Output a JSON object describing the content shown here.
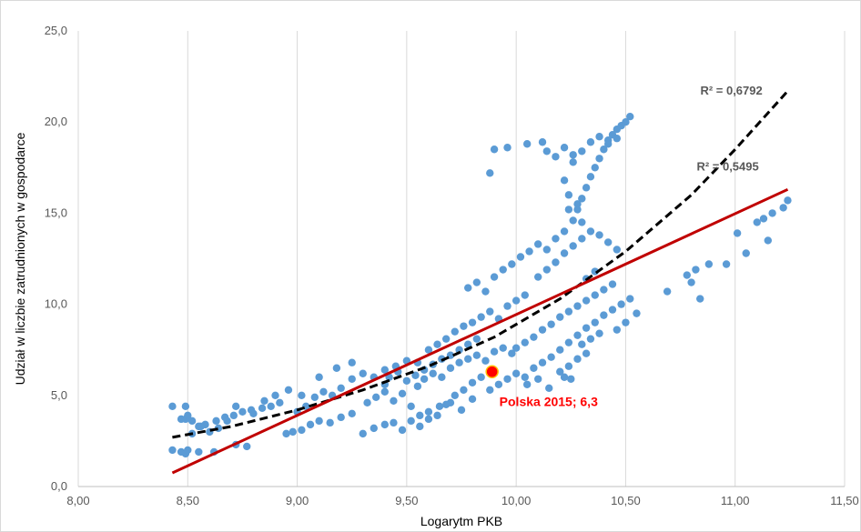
{
  "chart_data": {
    "type": "scatter",
    "xlabel": "Logarytm PKB",
    "ylabel": "Udział w liczbie zatrudnionych w gospodarce",
    "xlim": [
      8.0,
      11.5
    ],
    "ylim": [
      0,
      25
    ],
    "x_ticks": [
      "8,00",
      "8,50",
      "9,00",
      "9,50",
      "10,00",
      "10,50",
      "11,00",
      "11,50"
    ],
    "y_ticks": [
      "0,0",
      "5,0",
      "10,0",
      "15,0",
      "20,0",
      "25,0"
    ],
    "grid": "vertical",
    "point_color": "#5b9bd5",
    "points": [
      [
        8.43,
        4.4
      ],
      [
        8.47,
        3.7
      ],
      [
        8.49,
        3.7
      ],
      [
        8.49,
        4.4
      ],
      [
        8.5,
        3.9
      ],
      [
        8.52,
        3.6
      ],
      [
        8.55,
        3.3
      ],
      [
        8.58,
        3.4
      ],
      [
        8.63,
        3.6
      ],
      [
        8.67,
        3.8
      ],
      [
        8.71,
        3.9
      ],
      [
        8.75,
        4.1
      ],
      [
        8.79,
        4.2
      ],
      [
        8.84,
        4.3
      ],
      [
        8.88,
        4.4
      ],
      [
        8.92,
        4.6
      ],
      [
        8.43,
        2.0
      ],
      [
        8.47,
        1.9
      ],
      [
        8.49,
        1.8
      ],
      [
        8.5,
        2.0
      ],
      [
        8.55,
        1.9
      ],
      [
        8.62,
        1.9
      ],
      [
        8.72,
        2.3
      ],
      [
        8.77,
        2.2
      ],
      [
        8.52,
        2.9
      ],
      [
        8.56,
        3.3
      ],
      [
        8.6,
        3.0
      ],
      [
        8.64,
        3.2
      ],
      [
        8.68,
        3.6
      ],
      [
        8.72,
        4.4
      ],
      [
        8.8,
        4.0
      ],
      [
        8.85,
        4.7
      ],
      [
        8.95,
        2.9
      ],
      [
        8.98,
        3.0
      ],
      [
        9.02,
        3.1
      ],
      [
        9.06,
        3.4
      ],
      [
        9.1,
        3.6
      ],
      [
        9.15,
        3.5
      ],
      [
        9.2,
        3.8
      ],
      [
        9.25,
        4.0
      ],
      [
        9.0,
        4.1
      ],
      [
        9.04,
        4.4
      ],
      [
        9.08,
        4.9
      ],
      [
        9.12,
        5.2
      ],
      [
        9.16,
        5.0
      ],
      [
        9.2,
        5.4
      ],
      [
        9.25,
        5.9
      ],
      [
        9.3,
        6.2
      ],
      [
        9.35,
        6.0
      ],
      [
        9.4,
        6.4
      ],
      [
        9.45,
        6.6
      ],
      [
        9.5,
        6.9
      ],
      [
        9.55,
        6.8
      ],
      [
        8.9,
        5.0
      ],
      [
        8.96,
        5.3
      ],
      [
        9.02,
        5.0
      ],
      [
        9.1,
        6.0
      ],
      [
        9.18,
        6.5
      ],
      [
        9.25,
        6.8
      ],
      [
        9.32,
        4.6
      ],
      [
        9.36,
        4.9
      ],
      [
        9.4,
        5.2
      ],
      [
        9.44,
        4.7
      ],
      [
        9.48,
        5.1
      ],
      [
        9.52,
        4.4
      ],
      [
        9.3,
        2.9
      ],
      [
        9.35,
        3.2
      ],
      [
        9.4,
        3.4
      ],
      [
        9.44,
        3.5
      ],
      [
        9.48,
        3.1
      ],
      [
        9.52,
        3.6
      ],
      [
        9.56,
        3.9
      ],
      [
        9.6,
        4.1
      ],
      [
        9.65,
        4.4
      ],
      [
        9.7,
        4.6
      ],
      [
        9.75,
        4.2
      ],
      [
        9.8,
        4.8
      ],
      [
        9.55,
        5.5
      ],
      [
        9.58,
        5.9
      ],
      [
        9.62,
        6.2
      ],
      [
        9.66,
        6.0
      ],
      [
        9.7,
        6.5
      ],
      [
        9.74,
        6.8
      ],
      [
        9.78,
        7.0
      ],
      [
        9.82,
        7.2
      ],
      [
        9.86,
        6.9
      ],
      [
        9.9,
        7.4
      ],
      [
        9.94,
        7.6
      ],
      [
        9.98,
        7.3
      ],
      [
        9.6,
        7.5
      ],
      [
        9.64,
        7.8
      ],
      [
        9.68,
        8.1
      ],
      [
        9.72,
        8.5
      ],
      [
        9.76,
        8.8
      ],
      [
        9.8,
        9.0
      ],
      [
        9.84,
        9.3
      ],
      [
        9.88,
        9.6
      ],
      [
        9.92,
        9.2
      ],
      [
        9.96,
        9.9
      ],
      [
        10.0,
        10.2
      ],
      [
        10.04,
        10.5
      ],
      [
        9.78,
        10.9
      ],
      [
        9.82,
        11.2
      ],
      [
        9.86,
        10.7
      ],
      [
        9.9,
        11.5
      ],
      [
        9.94,
        11.9
      ],
      [
        9.98,
        12.2
      ],
      [
        10.02,
        12.6
      ],
      [
        10.06,
        12.9
      ],
      [
        10.1,
        13.3
      ],
      [
        10.14,
        13.0
      ],
      [
        10.18,
        13.6
      ],
      [
        10.22,
        14.0
      ],
      [
        9.88,
        5.3
      ],
      [
        9.92,
        5.6
      ],
      [
        9.96,
        5.9
      ],
      [
        10.0,
        6.2
      ],
      [
        10.04,
        6.0
      ],
      [
        10.08,
        6.5
      ],
      [
        10.12,
        6.8
      ],
      [
        10.16,
        7.1
      ],
      [
        10.2,
        6.3
      ],
      [
        10.24,
        6.6
      ],
      [
        10.28,
        7.0
      ],
      [
        10.32,
        7.3
      ],
      [
        10.0,
        7.6
      ],
      [
        10.04,
        7.9
      ],
      [
        10.08,
        8.2
      ],
      [
        10.12,
        8.6
      ],
      [
        10.16,
        8.9
      ],
      [
        10.2,
        9.3
      ],
      [
        10.24,
        9.6
      ],
      [
        10.28,
        9.9
      ],
      [
        10.32,
        10.2
      ],
      [
        10.36,
        10.5
      ],
      [
        10.4,
        10.8
      ],
      [
        10.44,
        11.1
      ],
      [
        10.2,
        7.5
      ],
      [
        10.24,
        7.9
      ],
      [
        10.28,
        8.3
      ],
      [
        10.32,
        8.7
      ],
      [
        10.36,
        9.0
      ],
      [
        10.4,
        9.4
      ],
      [
        10.44,
        9.7
      ],
      [
        10.48,
        10.0
      ],
      [
        10.52,
        10.3
      ],
      [
        10.55,
        9.5
      ],
      [
        10.5,
        9.0
      ],
      [
        10.46,
        8.6
      ],
      [
        10.1,
        11.5
      ],
      [
        10.14,
        11.9
      ],
      [
        10.18,
        12.3
      ],
      [
        10.22,
        12.8
      ],
      [
        10.26,
        13.2
      ],
      [
        10.3,
        13.6
      ],
      [
        10.34,
        14.0
      ],
      [
        10.38,
        13.8
      ],
      [
        10.42,
        13.4
      ],
      [
        10.46,
        13.0
      ],
      [
        10.32,
        11.4
      ],
      [
        10.36,
        11.8
      ],
      [
        10.26,
        14.6
      ],
      [
        10.28,
        15.2
      ],
      [
        10.3,
        15.8
      ],
      [
        10.32,
        16.4
      ],
      [
        10.34,
        17.0
      ],
      [
        10.36,
        17.5
      ],
      [
        10.38,
        18.0
      ],
      [
        10.4,
        18.5
      ],
      [
        10.42,
        19.0
      ],
      [
        10.44,
        19.3
      ],
      [
        10.46,
        19.6
      ],
      [
        10.48,
        19.8
      ],
      [
        10.5,
        20.0
      ],
      [
        10.52,
        20.3
      ],
      [
        10.3,
        18.4
      ],
      [
        10.34,
        18.9
      ],
      [
        10.38,
        19.2
      ],
      [
        10.42,
        18.8
      ],
      [
        10.46,
        19.1
      ],
      [
        10.26,
        18.2
      ],
      [
        10.22,
        18.6
      ],
      [
        10.18,
        18.1
      ],
      [
        10.14,
        18.4
      ],
      [
        10.12,
        18.9
      ],
      [
        10.05,
        18.8
      ],
      [
        9.96,
        18.6
      ],
      [
        9.9,
        18.5
      ],
      [
        9.88,
        17.2
      ],
      [
        10.22,
        16.8
      ],
      [
        10.24,
        16.0
      ],
      [
        10.28,
        15.5
      ],
      [
        10.3,
        14.5
      ],
      [
        10.24,
        15.2
      ],
      [
        10.26,
        17.8
      ],
      [
        10.69,
        10.7
      ],
      [
        10.78,
        11.6
      ],
      [
        10.82,
        11.9
      ],
      [
        10.88,
        12.2
      ],
      [
        10.96,
        12.2
      ],
      [
        10.8,
        11.2
      ],
      [
        10.84,
        10.3
      ],
      [
        11.01,
        13.9
      ],
      [
        11.05,
        12.8
      ],
      [
        11.1,
        14.5
      ],
      [
        11.13,
        14.7
      ],
      [
        11.15,
        13.5
      ],
      [
        11.17,
        15.0
      ],
      [
        11.22,
        15.3
      ],
      [
        11.24,
        15.7
      ],
      [
        9.4,
        5.6
      ],
      [
        9.42,
        6.0
      ],
      [
        9.46,
        6.3
      ],
      [
        9.5,
        5.8
      ],
      [
        9.54,
        6.1
      ],
      [
        9.58,
        6.4
      ],
      [
        9.62,
        6.7
      ],
      [
        9.66,
        7.0
      ],
      [
        9.7,
        7.2
      ],
      [
        9.74,
        7.5
      ],
      [
        9.78,
        7.8
      ],
      [
        9.82,
        8.1
      ],
      [
        9.56,
        3.3
      ],
      [
        9.6,
        3.7
      ],
      [
        9.64,
        3.9
      ],
      [
        9.68,
        4.5
      ],
      [
        9.72,
        5.0
      ],
      [
        9.76,
        5.3
      ],
      [
        9.8,
        5.7
      ],
      [
        9.84,
        6.0
      ],
      [
        10.05,
        5.6
      ],
      [
        10.1,
        5.9
      ],
      [
        10.15,
        5.4
      ],
      [
        10.22,
        6.0
      ],
      [
        10.25,
        5.9
      ],
      [
        10.3,
        7.8
      ],
      [
        10.34,
        8.1
      ],
      [
        10.38,
        8.4
      ]
    ],
    "highlight": {
      "x": 9.89,
      "y": 6.3,
      "label": "Polska 2015; 6,3",
      "color": "#ff0000"
    },
    "trendlines": [
      {
        "kind": "polynomial",
        "style": "dashed",
        "color": "#000000",
        "r2_label": "R² = 0,6792",
        "points": [
          [
            8.43,
            2.7
          ],
          [
            8.7,
            3.3
          ],
          [
            9.0,
            4.2
          ],
          [
            9.3,
            5.3
          ],
          [
            9.6,
            6.6
          ],
          [
            9.9,
            8.2
          ],
          [
            10.2,
            10.3
          ],
          [
            10.5,
            12.9
          ],
          [
            10.8,
            16.0
          ],
          [
            11.0,
            18.5
          ],
          [
            11.24,
            21.7
          ]
        ]
      },
      {
        "kind": "linear",
        "style": "solid",
        "color": "#c00000",
        "r2_label": "R² = 0,5495",
        "points": [
          [
            8.43,
            0.75
          ],
          [
            11.24,
            16.3
          ]
        ]
      }
    ]
  }
}
